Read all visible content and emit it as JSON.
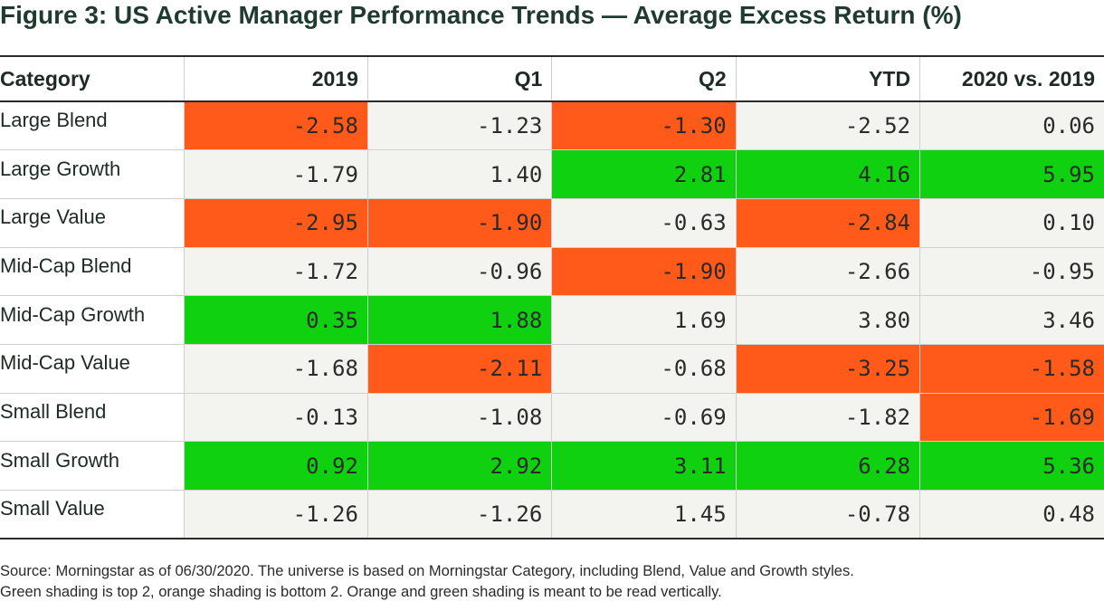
{
  "title": "Figure 3: US Active Manager Performance Trends — Average Excess Return (%)",
  "colors": {
    "top": "#0fd10f",
    "bottom": "#ff5a1a",
    "neutral": "#f3f3ef"
  },
  "chart_data": {
    "type": "table",
    "title": "Figure 3: US Active Manager Performance Trends — Average Excess Return (%)",
    "columns": [
      "Category",
      "2019",
      "Q1",
      "Q2",
      "YTD",
      "2020 vs. 2019"
    ],
    "rows": [
      {
        "category": "Large Blend",
        "values": [
          "-2.58",
          "-1.23",
          "-1.30",
          "-2.52",
          "0.06"
        ],
        "shading": [
          "bottom",
          "",
          "bottom",
          "",
          ""
        ]
      },
      {
        "category": "Large Growth",
        "values": [
          "-1.79",
          "1.40",
          "2.81",
          "4.16",
          "5.95"
        ],
        "shading": [
          "",
          "",
          "top",
          "top",
          "top"
        ]
      },
      {
        "category": "Large Value",
        "values": [
          "-2.95",
          "-1.90",
          "-0.63",
          "-2.84",
          "0.10"
        ],
        "shading": [
          "bottom",
          "bottom",
          "",
          "bottom",
          ""
        ]
      },
      {
        "category": "Mid-Cap Blend",
        "values": [
          "-1.72",
          "-0.96",
          "-1.90",
          "-2.66",
          "-0.95"
        ],
        "shading": [
          "",
          "",
          "bottom",
          "",
          ""
        ]
      },
      {
        "category": "Mid-Cap Growth",
        "values": [
          "0.35",
          "1.88",
          "1.69",
          "3.80",
          "3.46"
        ],
        "shading": [
          "top",
          "top",
          "",
          "",
          ""
        ]
      },
      {
        "category": "Mid-Cap Value",
        "values": [
          "-1.68",
          "-2.11",
          "-0.68",
          "-3.25",
          "-1.58"
        ],
        "shading": [
          "",
          "bottom",
          "",
          "bottom",
          "bottom"
        ]
      },
      {
        "category": "Small Blend",
        "values": [
          "-0.13",
          "-1.08",
          "-0.69",
          "-1.82",
          "-1.69"
        ],
        "shading": [
          "",
          "",
          "",
          "",
          "bottom"
        ]
      },
      {
        "category": "Small Growth",
        "values": [
          "0.92",
          "2.92",
          "3.11",
          "6.28",
          "5.36"
        ],
        "shading": [
          "top",
          "top",
          "top",
          "top",
          "top"
        ]
      },
      {
        "category": "Small Value",
        "values": [
          "-1.26",
          "-1.26",
          "1.45",
          "-0.78",
          "0.48"
        ],
        "shading": [
          "",
          "",
          "",
          "",
          ""
        ]
      }
    ]
  },
  "footnote": {
    "line1": "Source: Morningstar as of 06/30/2020. The universe is based on Morningstar Category, including Blend, Value and Growth styles.",
    "line2": "Green shading is top 2, orange shading is bottom 2. Orange and green shading is meant to be read vertically."
  }
}
